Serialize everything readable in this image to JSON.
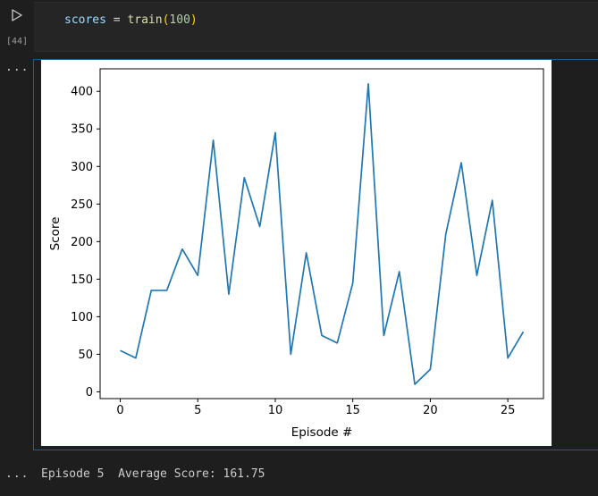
{
  "cell": {
    "execution_count": "[44]",
    "code": {
      "var": "scores",
      "op": " = ",
      "fn": "train",
      "open": "(",
      "arg": "100",
      "close": ")"
    },
    "more_label": "..."
  },
  "output": {
    "stream_text": "Episode 5\tAverage Score: 161.75"
  },
  "colors": {
    "line": "#1f77b4",
    "accent_border": "#0e639c"
  },
  "chart_data": {
    "type": "line",
    "title": "",
    "xlabel": "Episode #",
    "ylabel": "Score",
    "xlim": [
      -1.3,
      27.3
    ],
    "ylim": [
      -9,
      430
    ],
    "xticks": [
      0,
      5,
      10,
      15,
      20,
      25
    ],
    "yticks": [
      0,
      50,
      100,
      150,
      200,
      250,
      300,
      350,
      400
    ],
    "grid": false,
    "x": [
      0,
      1,
      2,
      3,
      4,
      5,
      6,
      7,
      8,
      9,
      10,
      11,
      12,
      13,
      14,
      15,
      16,
      17,
      18,
      19,
      20,
      21,
      22,
      23,
      24,
      25,
      26
    ],
    "series": [
      {
        "values": [
          55,
          45,
          135,
          135,
          190,
          155,
          335,
          130,
          285,
          220,
          345,
          50,
          185,
          75,
          65,
          145,
          410,
          75,
          160,
          10,
          30,
          210,
          305,
          155,
          255,
          45,
          80
        ]
      }
    ]
  }
}
